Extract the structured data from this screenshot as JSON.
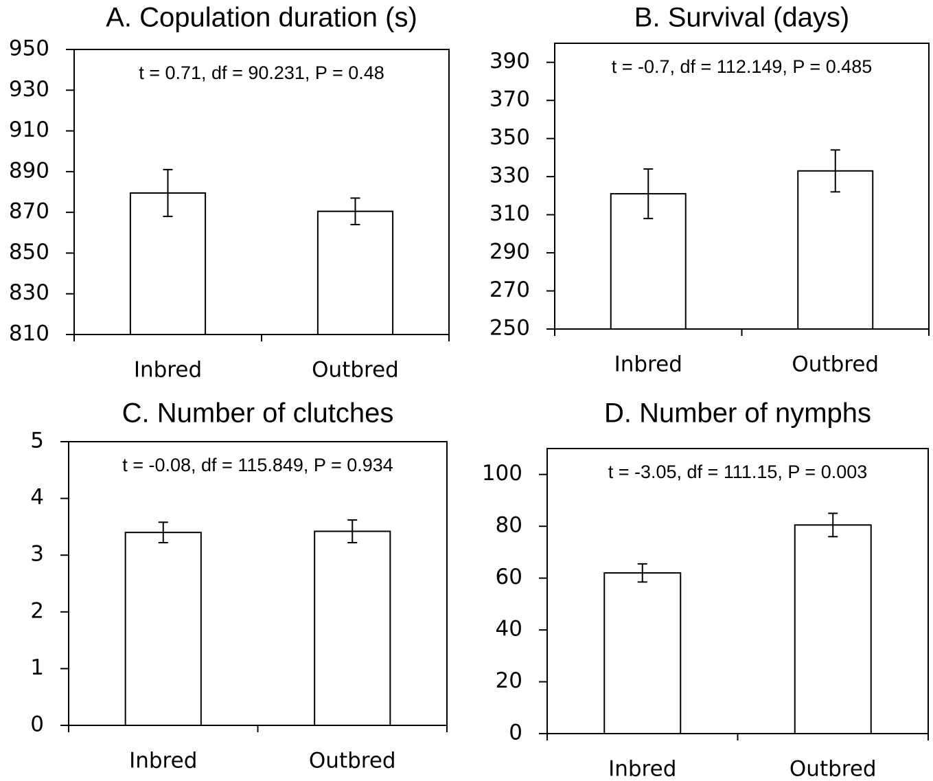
{
  "chart_data": [
    {
      "type": "bar",
      "title": "A. Copulation duration (s)",
      "annotation": "t = 0.71, df = 90.231, P = 0.48",
      "categories": [
        "Inbred",
        "Outbred"
      ],
      "values": [
        879.5,
        870.5
      ],
      "errors": [
        11.5,
        6.5
      ],
      "color": "#ffffff",
      "ylim": [
        810,
        950
      ],
      "yticks": [
        810,
        830,
        850,
        870,
        890,
        910,
        930,
        950
      ]
    },
    {
      "type": "bar",
      "title": "B. Survival (days)",
      "annotation": "t = -0.7, df = 112.149, P = 0.485",
      "categories": [
        "Inbred",
        "Outbred"
      ],
      "values": [
        321,
        333
      ],
      "errors": [
        13,
        11
      ],
      "color": "#ffffff",
      "ylim": [
        250,
        400
      ],
      "yticks": [
        250,
        270,
        290,
        310,
        330,
        350,
        370,
        390
      ]
    },
    {
      "type": "bar",
      "title": "C. Number of clutches",
      "annotation": "t = -0.08, df = 115.849, P = 0.934",
      "categories": [
        "Inbred",
        "Outbred"
      ],
      "values": [
        3.4,
        3.42
      ],
      "errors": [
        0.18,
        0.2
      ],
      "color": "#ffffff",
      "ylim": [
        0,
        5
      ],
      "yticks": [
        0,
        1,
        2,
        3,
        4,
        5
      ]
    },
    {
      "type": "bar",
      "title": "D. Number of nymphs",
      "annotation": "t = -3.05, df = 111.15, P = 0.003",
      "categories": [
        "Inbred",
        "Outbred"
      ],
      "values": [
        62,
        80.5
      ],
      "errors": [
        3.5,
        4.5
      ],
      "color": "#ffffff",
      "ylim": [
        0,
        110
      ],
      "yticks": [
        0,
        20,
        40,
        60,
        80,
        100
      ]
    }
  ]
}
